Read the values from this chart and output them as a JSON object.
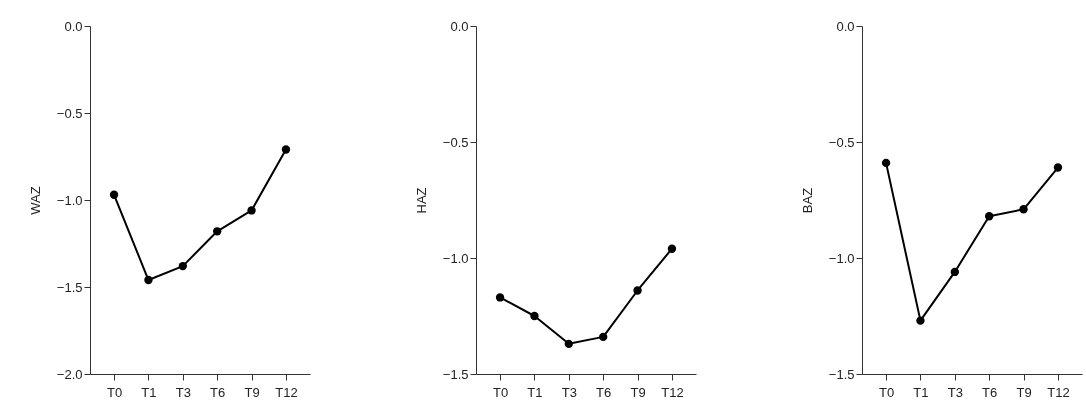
{
  "chart_data": [
    {
      "type": "line",
      "ylabel": "WAZ",
      "categories": [
        "T0",
        "T1",
        "T3",
        "T6",
        "T9",
        "T12"
      ],
      "series": [
        {
          "color": "#000000",
          "values": [
            -0.97,
            -1.46,
            -1.38,
            -1.18,
            -1.06,
            -0.71
          ]
        }
      ],
      "ylim": [
        -2.0,
        0.0
      ],
      "yticks": [
        {
          "value": -2.0,
          "label": "−2.0"
        },
        {
          "value": -1.5,
          "label": "−1.5"
        },
        {
          "value": -1.0,
          "label": "−1.0"
        },
        {
          "value": -0.5,
          "label": "−0.5"
        },
        {
          "value": 0.0,
          "label": "0.0"
        }
      ],
      "grid": false,
      "legend": false,
      "marker": "circle",
      "line_style": "solid"
    },
    {
      "type": "line",
      "ylabel": "HAZ",
      "categories": [
        "T0",
        "T1",
        "T3",
        "T6",
        "T9",
        "T12"
      ],
      "series": [
        {
          "color": "#000000",
          "values": [
            -1.17,
            -1.25,
            -1.37,
            -1.34,
            -1.14,
            -0.96
          ]
        }
      ],
      "ylim": [
        -1.5,
        0.0
      ],
      "yticks": [
        {
          "value": -1.5,
          "label": "−1.5"
        },
        {
          "value": -1.0,
          "label": "−1.0"
        },
        {
          "value": -0.5,
          "label": "−0.5"
        },
        {
          "value": 0.0,
          "label": "0.0"
        }
      ],
      "grid": false,
      "legend": false,
      "marker": "circle",
      "line_style": "solid"
    },
    {
      "type": "line",
      "ylabel": "BAZ",
      "categories": [
        "T0",
        "T1",
        "T3",
        "T6",
        "T9",
        "T12"
      ],
      "series": [
        {
          "color": "#000000",
          "values": [
            -0.59,
            -1.27,
            -1.06,
            -0.82,
            -0.79,
            -0.61
          ]
        }
      ],
      "ylim": [
        -1.5,
        0.0
      ],
      "yticks": [
        {
          "value": -1.5,
          "label": "−1.5"
        },
        {
          "value": -1.0,
          "label": "−1.0"
        },
        {
          "value": -0.5,
          "label": "−0.5"
        },
        {
          "value": 0.0,
          "label": "0.0"
        }
      ],
      "grid": false,
      "legend": false,
      "marker": "circle",
      "line_style": "solid"
    }
  ]
}
